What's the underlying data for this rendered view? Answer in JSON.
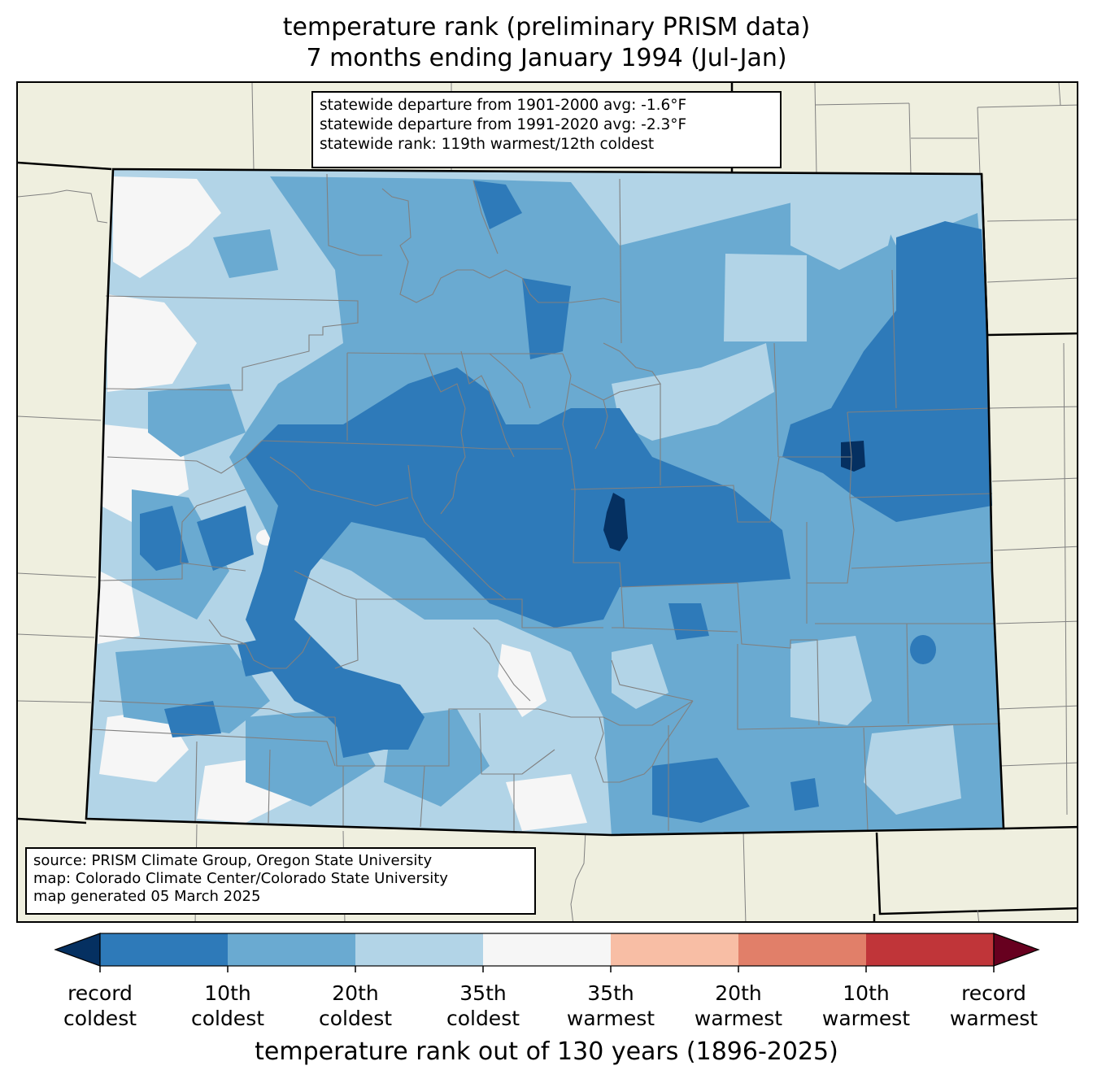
{
  "title": {
    "line1": "temperature rank (preliminary PRISM data)",
    "line2": "7 months ending January 1994 (Jul-Jan)"
  },
  "stats_box": {
    "line1": "statewide departure from 1901-2000 avg: -1.6°F",
    "line2": "statewide departure from 1991-2020 avg: -2.3°F",
    "line3": "statewide rank: 119th warmest/12th coldest"
  },
  "source_box": {
    "line1": "source: PRISM Climate Group, Oregon State University",
    "line2": "map: Colorado Climate Center/Colorado State University",
    "line3": "map generated 05 March 2025"
  },
  "colors": {
    "record_coldest": "#053061",
    "c10": "#2e7ab9",
    "c20": "#6aaad1",
    "c35": "#b2d4e7",
    "near": "#f6f6f6",
    "w35": "#f8bea5",
    "w20": "#e17f69",
    "w10": "#c03539",
    "record_warmest": "#67001f",
    "land": "#efefdf",
    "county_line": "#808080"
  },
  "colorbar": {
    "label": "temperature rank out of 130 years (1896-2025)",
    "ticks": [
      {
        "line1": "record",
        "line2": "coldest"
      },
      {
        "line1": "10th",
        "line2": "coldest"
      },
      {
        "line1": "20th",
        "line2": "coldest"
      },
      {
        "line1": "35th",
        "line2": "coldest"
      },
      {
        "line1": "35th",
        "line2": "warmest"
      },
      {
        "line1": "20th",
        "line2": "warmest"
      },
      {
        "line1": "10th",
        "line2": "warmest"
      },
      {
        "line1": "record",
        "line2": "warmest"
      }
    ]
  }
}
